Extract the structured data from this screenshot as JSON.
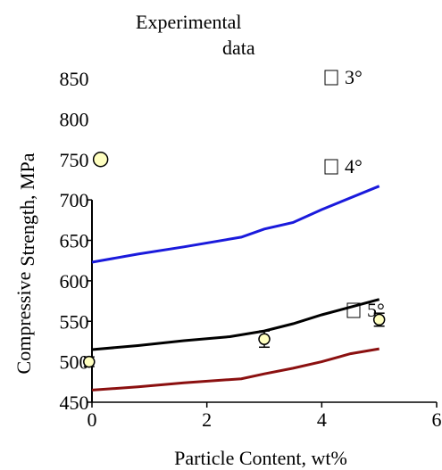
{
  "chart_data": {
    "type": "line",
    "title_lines": [
      "Experimental",
      "data"
    ],
    "xlabel": "Particle Content, wt%",
    "ylabel_lines": [
      "Strength, MPa",
      "Compressive"
    ],
    "xlim": [
      0,
      6
    ],
    "x_ticks": [
      {
        "value": 0,
        "label": "0"
      },
      {
        "value": 2,
        "label": "2"
      },
      {
        "value": 4,
        "label": "4"
      },
      {
        "value": 6,
        "label": "6"
      }
    ],
    "ylim": [
      450,
      850
    ],
    "y_ticks": [
      {
        "value": 850,
        "label": "850"
      },
      {
        "value": 800,
        "label": "800"
      },
      {
        "value": 750,
        "label": "750"
      },
      {
        "value": 700,
        "label": "700"
      },
      {
        "value": 650,
        "label": "650"
      },
      {
        "value": 600,
        "label": "600"
      },
      {
        "value": 550,
        "label": "550"
      },
      {
        "value": 500,
        "label": "500"
      },
      {
        "value": 450,
        "label": "450"
      }
    ],
    "series": [
      {
        "name": "3°",
        "color": "#1a1adc",
        "x": [
          0,
          0.8,
          1.6,
          2.6,
          3.0,
          3.5,
          4.0,
          5.0
        ],
        "y": [
          623,
          633,
          642,
          654,
          664,
          672,
          688,
          717
        ]
      },
      {
        "name": "4°",
        "color": "#000000",
        "x": [
          0,
          0.8,
          1.6,
          2.4,
          3.0,
          3.5,
          4.0,
          5.0
        ],
        "y": [
          515,
          520,
          526,
          531,
          538,
          547,
          558,
          577
        ]
      },
      {
        "name": "5°",
        "color": "#8b1010",
        "x": [
          0,
          0.8,
          1.6,
          2.6,
          3.0,
          3.5,
          4.0,
          4.5,
          5.0
        ],
        "y": [
          465,
          469,
          474,
          479,
          485,
          492,
          500,
          510,
          516
        ]
      }
    ],
    "experimental_points": [
      {
        "x": 0.15,
        "y": 750,
        "err": 0
      },
      {
        "x": -0.05,
        "y": 500,
        "err": 6
      },
      {
        "x": 3.0,
        "y": 528,
        "err": 10
      },
      {
        "x": 5.0,
        "y": 552,
        "err": 8
      }
    ]
  }
}
